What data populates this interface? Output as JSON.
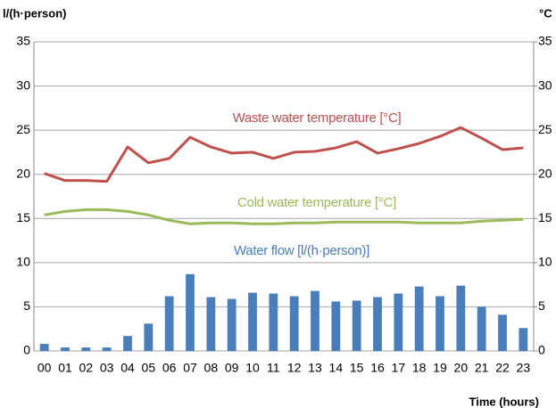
{
  "chart_data": {
    "type": "bar_line",
    "ylabel": "l/(h·person)",
    "y2label": "°C",
    "xlabel": "Time (hours)",
    "categories": [
      "00",
      "01",
      "02",
      "03",
      "04",
      "05",
      "06",
      "07",
      "08",
      "09",
      "10",
      "11",
      "12",
      "13",
      "14",
      "15",
      "16",
      "17",
      "18",
      "19",
      "20",
      "21",
      "22",
      "23"
    ],
    "series": [
      {
        "name": "Water flow [l/(h·person)]",
        "type": "bar",
        "color": "#4a7ebb",
        "axis": "y",
        "values": [
          0.8,
          0.4,
          0.4,
          0.4,
          1.7,
          3.1,
          6.2,
          8.7,
          6.1,
          5.9,
          6.6,
          6.5,
          6.2,
          6.8,
          5.6,
          5.7,
          6.1,
          6.5,
          7.3,
          6.2,
          7.4,
          5.0,
          4.1,
          2.6
        ]
      },
      {
        "name": "Waste water temperature [°C]",
        "type": "line",
        "color": "#c0504d",
        "axis": "y2",
        "values": [
          20.1,
          19.3,
          19.3,
          19.2,
          23.1,
          21.3,
          21.8,
          24.2,
          23.1,
          22.4,
          22.5,
          21.8,
          22.5,
          22.6,
          23.0,
          23.7,
          22.4,
          22.9,
          23.5,
          24.3,
          25.3,
          24.1,
          22.8,
          23.0
        ]
      },
      {
        "name": "Cold water temperature [°C]",
        "type": "line",
        "color": "#9bbb59",
        "axis": "y2",
        "values": [
          15.4,
          15.8,
          16.0,
          16.0,
          15.8,
          15.4,
          14.8,
          14.4,
          14.5,
          14.5,
          14.4,
          14.4,
          14.5,
          14.5,
          14.6,
          14.6,
          14.6,
          14.6,
          14.5,
          14.5,
          14.5,
          14.7,
          14.8,
          14.9
        ]
      }
    ],
    "ylim": [
      0,
      35
    ],
    "yticks": [
      0,
      5,
      10,
      15,
      20,
      25,
      30,
      35
    ],
    "y2lim": [
      0,
      35
    ],
    "y2ticks": [
      0,
      5,
      10,
      15,
      20,
      25,
      30,
      35
    ],
    "grid": true
  }
}
